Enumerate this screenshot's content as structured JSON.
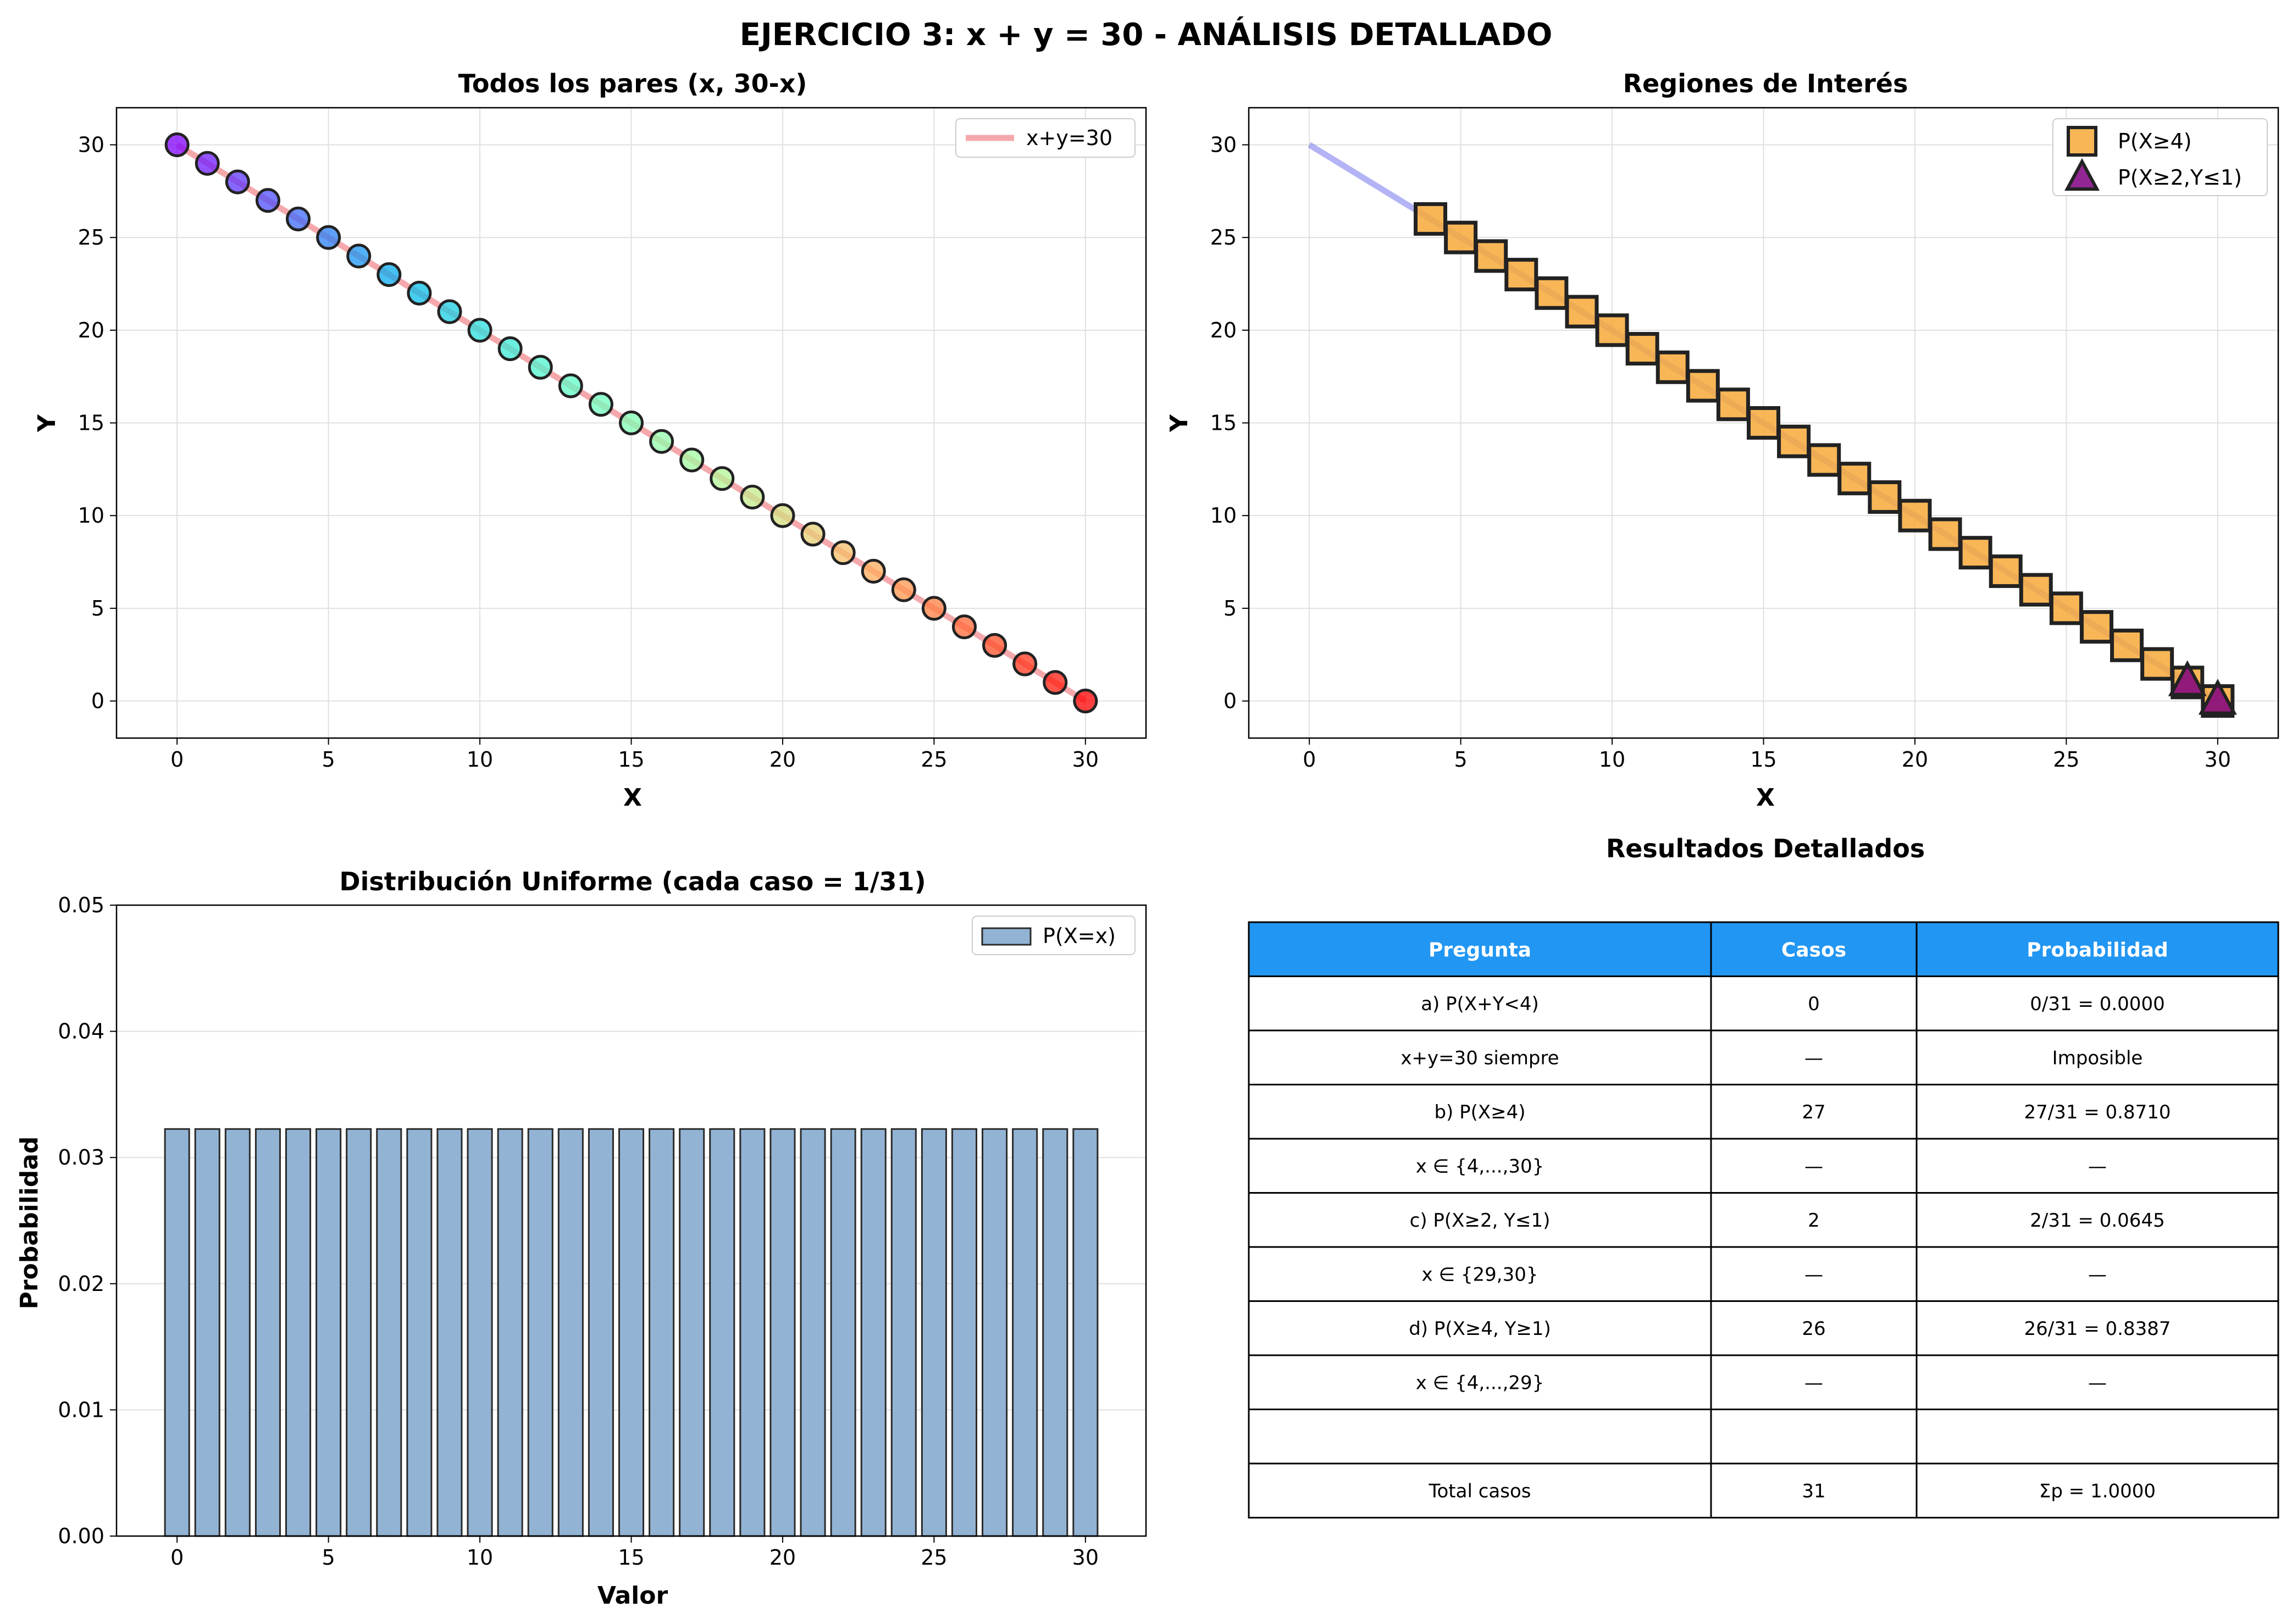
{
  "suptitle": "EJERCICIO 3: x + y = 30 - ANÁLISIS DETALLADO",
  "colors": {
    "line_pairs": "#f28b8f",
    "line_regions": "#8a8af0",
    "square_fill": "#f7a93a",
    "triangle_fill": "#800080",
    "bar_fill": "#92b3d4",
    "table_header": "#2196f3"
  },
  "chart_data": [
    {
      "type": "scatter",
      "title": "Todos los pares (x, 30-x)",
      "xlabel": "X",
      "ylabel": "Y",
      "xlim": [
        -2,
        32
      ],
      "ylim": [
        -2,
        32
      ],
      "xticks": [
        0,
        5,
        10,
        15,
        20,
        25,
        30
      ],
      "yticks": [
        0,
        5,
        10,
        15,
        20,
        25,
        30
      ],
      "grid": true,
      "legend_position": "top-right",
      "colormap": "rainbow",
      "x": [
        0,
        1,
        2,
        3,
        4,
        5,
        6,
        7,
        8,
        9,
        10,
        11,
        12,
        13,
        14,
        15,
        16,
        17,
        18,
        19,
        20,
        21,
        22,
        23,
        24,
        25,
        26,
        27,
        28,
        29,
        30
      ],
      "y": [
        30,
        29,
        28,
        27,
        26,
        25,
        24,
        23,
        22,
        21,
        20,
        19,
        18,
        17,
        16,
        15,
        14,
        13,
        12,
        11,
        10,
        9,
        8,
        7,
        6,
        5,
        4,
        3,
        2,
        1,
        0
      ],
      "line": {
        "name": "x+y=30",
        "x": [
          0,
          30
        ],
        "y": [
          30,
          0
        ]
      }
    },
    {
      "type": "scatter",
      "title": "Regiones de Interés",
      "xlabel": "X",
      "ylabel": "Y",
      "xlim": [
        -2,
        32
      ],
      "ylim": [
        -2,
        32
      ],
      "xticks": [
        0,
        5,
        10,
        15,
        20,
        25,
        30
      ],
      "yticks": [
        0,
        5,
        10,
        15,
        20,
        25,
        30
      ],
      "grid": true,
      "legend_position": "top-right",
      "line": {
        "x": [
          0,
          30
        ],
        "y": [
          30,
          0
        ]
      },
      "series": [
        {
          "name": "P(X≥4)",
          "marker": "square",
          "x": [
            4,
            5,
            6,
            7,
            8,
            9,
            10,
            11,
            12,
            13,
            14,
            15,
            16,
            17,
            18,
            19,
            20,
            21,
            22,
            23,
            24,
            25,
            26,
            27,
            28,
            29,
            30
          ],
          "y": [
            26,
            25,
            24,
            23,
            22,
            21,
            20,
            19,
            18,
            17,
            16,
            15,
            14,
            13,
            12,
            11,
            10,
            9,
            8,
            7,
            6,
            5,
            4,
            3,
            2,
            1,
            0
          ]
        },
        {
          "name": "P(X≥2,Y≤1)",
          "marker": "triangle",
          "x": [
            29,
            30
          ],
          "y": [
            1,
            0
          ]
        }
      ]
    },
    {
      "type": "bar",
      "title": "Distribución Uniforme (cada caso = 1/31)",
      "xlabel": "Valor",
      "ylabel": "Probabilidad",
      "xlim": [
        -2,
        32
      ],
      "ylim": [
        0,
        0.05
      ],
      "xticks": [
        0,
        5,
        10,
        15,
        20,
        25,
        30
      ],
      "yticks": [
        "0.00",
        "0.01",
        "0.02",
        "0.03",
        "0.04",
        "0.05"
      ],
      "grid": true,
      "legend_position": "top-right",
      "series": [
        {
          "name": "P(X=x)",
          "categories": [
            0,
            1,
            2,
            3,
            4,
            5,
            6,
            7,
            8,
            9,
            10,
            11,
            12,
            13,
            14,
            15,
            16,
            17,
            18,
            19,
            20,
            21,
            22,
            23,
            24,
            25,
            26,
            27,
            28,
            29,
            30
          ],
          "values": [
            0.03226,
            0.03226,
            0.03226,
            0.03226,
            0.03226,
            0.03226,
            0.03226,
            0.03226,
            0.03226,
            0.03226,
            0.03226,
            0.03226,
            0.03226,
            0.03226,
            0.03226,
            0.03226,
            0.03226,
            0.03226,
            0.03226,
            0.03226,
            0.03226,
            0.03226,
            0.03226,
            0.03226,
            0.03226,
            0.03226,
            0.03226,
            0.03226,
            0.03226,
            0.03226,
            0.03226
          ]
        }
      ]
    },
    {
      "type": "table",
      "title": "Resultados Detallados",
      "columns": [
        "Pregunta",
        "Casos",
        "Probabilidad"
      ],
      "rows": [
        [
          "a) P(X+Y<4)",
          "0",
          "0/31 = 0.0000"
        ],
        [
          "x+y=30 siempre",
          "—",
          "Imposible"
        ],
        [
          "b) P(X≥4)",
          "27",
          "27/31 = 0.8710"
        ],
        [
          "x ∈ {4,...,30}",
          "—",
          "—"
        ],
        [
          "c) P(X≥2, Y≤1)",
          "2",
          "2/31 = 0.0645"
        ],
        [
          "x ∈ {29,30}",
          "—",
          "—"
        ],
        [
          "d) P(X≥4, Y≥1)",
          "26",
          "26/31 = 0.8387"
        ],
        [
          "x ∈ {4,...,29}",
          "—",
          "—"
        ],
        [
          "",
          "",
          ""
        ],
        [
          "Total casos",
          "31",
          "Σp = 1.0000"
        ]
      ]
    }
  ]
}
